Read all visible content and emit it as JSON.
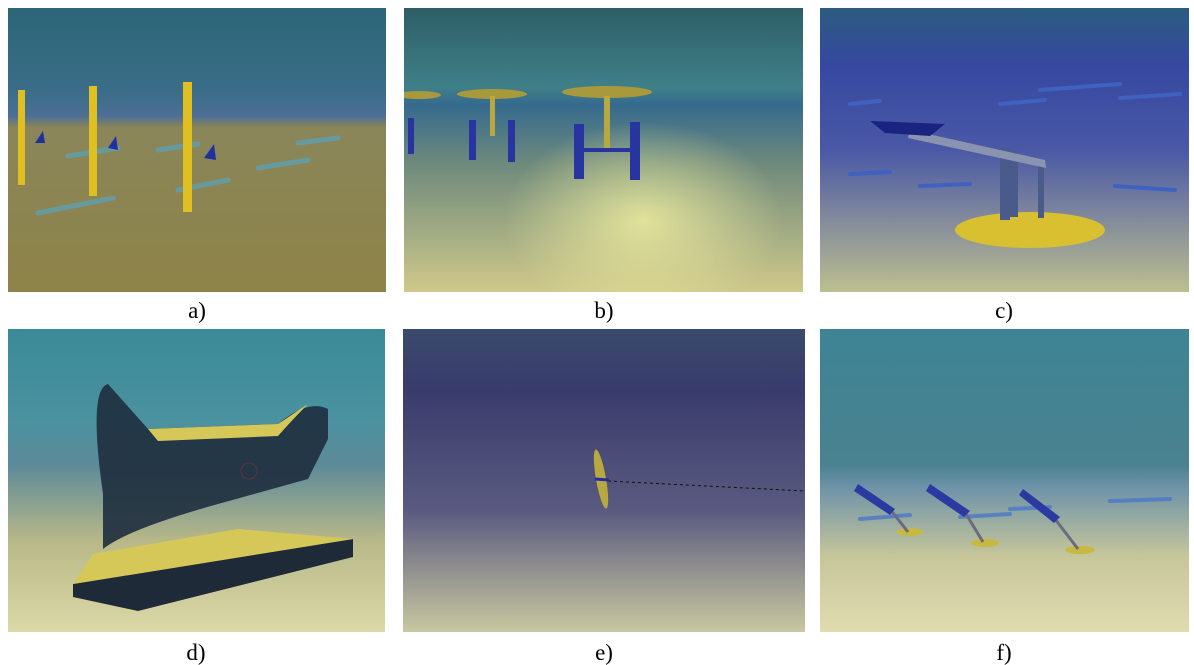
{
  "panels": [
    {
      "caption": "a)"
    },
    {
      "caption": "b)"
    },
    {
      "caption": "c)"
    },
    {
      "caption": "d)"
    },
    {
      "caption": "e)"
    },
    {
      "caption": "f)"
    }
  ]
}
